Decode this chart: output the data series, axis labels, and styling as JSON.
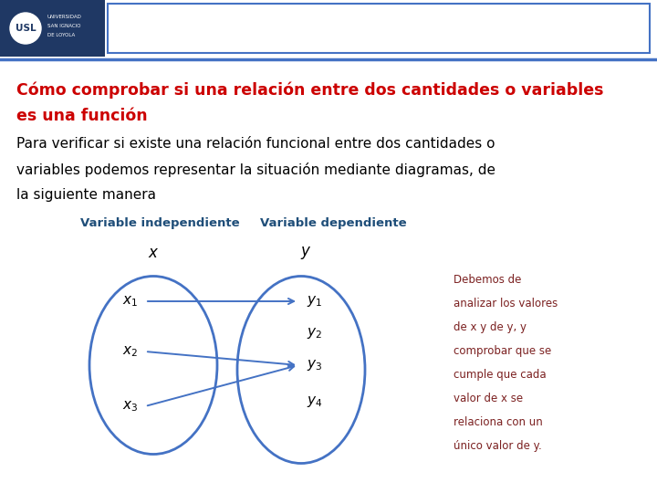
{
  "bg_color": "#ffffff",
  "header_bar_color": "#4472c4",
  "title_line1": "Cómo comprobar si una relación entre dos cantidades o variables",
  "title_line2": "es una función",
  "title_color": "#cc0000",
  "body_line1": "Para verificar si existe una relación funcional entre dos cantidades o",
  "body_line2": "variables podemos representar la situación mediante diagramas, de",
  "body_line3": "la siguiente manera",
  "body_color": "#000000",
  "label_indep": "Variable independiente",
  "label_dep": "Variable dependiente",
  "label_color": "#1f4e79",
  "ellipse_color": "#4472c4",
  "arrow_color": "#4472c4",
  "side_text_line1": "Debemos de",
  "side_text_line2": "analizar los valores",
  "side_text_line3": "de x y de y, y",
  "side_text_line4": "comprobar que se",
  "side_text_line5": "cumple que cada",
  "side_text_line6": "valor de x se",
  "side_text_line7": "relaciona con un",
  "side_text_line8": "único valor de y.",
  "side_text_color": "#7b2020",
  "logo_box_color": "#1f3864",
  "header_rect_color": "#4472c4"
}
